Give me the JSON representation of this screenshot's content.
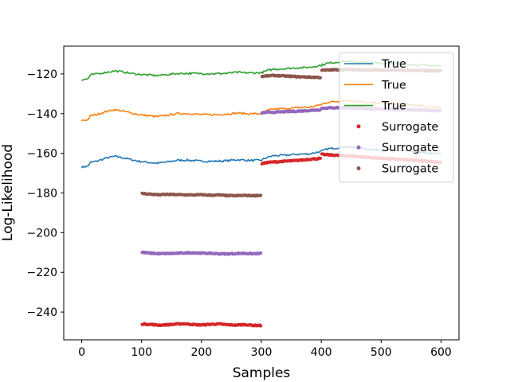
{
  "chart_data": {
    "type": "line",
    "xlabel": "Samples",
    "ylabel": "Log-Likelihood",
    "xlim": [
      -30,
      630
    ],
    "ylim": [
      -254,
      -106
    ],
    "xticks": [
      0,
      100,
      200,
      300,
      400,
      500,
      600
    ],
    "yticks": [
      -240,
      -220,
      -200,
      -180,
      -160,
      -140,
      -120
    ],
    "xtick_labels": [
      "0",
      "100",
      "200",
      "300",
      "400",
      "500",
      "600"
    ],
    "ytick_labels": [
      "−240",
      "−220",
      "−200",
      "−180",
      "−160",
      "−140",
      "−120"
    ],
    "legend_position": "top-right",
    "series": [
      {
        "name": "True",
        "kind": "line",
        "color": "#1f77b4",
        "x": [
          0,
          10,
          15,
          25,
          40,
          55,
          65,
          80,
          95,
          110,
          125,
          140,
          160,
          180,
          200,
          220,
          240,
          260,
          280,
          300,
          310,
          320,
          340,
          360,
          380,
          400,
          410,
          420,
          440,
          460,
          480,
          500,
          520,
          540,
          560,
          580,
          600
        ],
        "y": [
          -167,
          -166.5,
          -164.5,
          -164,
          -162.5,
          -161.5,
          -162,
          -163,
          -164,
          -164.5,
          -165,
          -164.5,
          -163.5,
          -163.5,
          -164,
          -164,
          -163.8,
          -163.2,
          -163.6,
          -163.5,
          -162,
          -161.2,
          -161,
          -160.5,
          -160.3,
          -159,
          -157.8,
          -157.5,
          -156.8,
          -157.2,
          -158,
          -158.2,
          -158.4,
          -158.7,
          -159.5,
          -160,
          -160.3
        ]
      },
      {
        "name": "True",
        "kind": "line",
        "color": "#ff7f0e",
        "x": [
          0,
          10,
          15,
          25,
          40,
          55,
          65,
          80,
          95,
          110,
          125,
          140,
          160,
          180,
          200,
          220,
          240,
          260,
          280,
          300,
          310,
          320,
          340,
          360,
          380,
          400,
          410,
          420,
          440,
          460,
          480,
          500,
          520,
          540,
          560,
          580,
          600
        ],
        "y": [
          -143.5,
          -143,
          -141,
          -140.5,
          -139,
          -138,
          -138.5,
          -139.5,
          -140.5,
          -141,
          -141.5,
          -141,
          -140,
          -140,
          -140.5,
          -140.5,
          -140.3,
          -139.7,
          -140.1,
          -140,
          -138.5,
          -137.7,
          -137.5,
          -137,
          -136.8,
          -135.5,
          -134.3,
          -134,
          -133.3,
          -133.7,
          -134.5,
          -134.7,
          -134.9,
          -135.2,
          -136,
          -136.5,
          -136.8
        ]
      },
      {
        "name": "True",
        "kind": "line",
        "color": "#2ca02c",
        "x": [
          0,
          10,
          15,
          25,
          40,
          55,
          65,
          80,
          95,
          110,
          125,
          140,
          160,
          180,
          200,
          220,
          240,
          260,
          280,
          300,
          310,
          320,
          340,
          360,
          380,
          400,
          410,
          420,
          440,
          460,
          480,
          500,
          520,
          540,
          560,
          580,
          600
        ],
        "y": [
          -123,
          -122.5,
          -120.5,
          -120,
          -119.2,
          -118.5,
          -118.8,
          -119.6,
          -120.2,
          -120.5,
          -120.8,
          -120.4,
          -119.8,
          -119.7,
          -119.8,
          -119.9,
          -119.7,
          -119.2,
          -119.5,
          -119.4,
          -118.3,
          -117.6,
          -117.3,
          -116.9,
          -116.7,
          -115.6,
          -114.6,
          -114.3,
          -113.6,
          -113.9,
          -114.4,
          -114.6,
          -114.7,
          -114.9,
          -115.5,
          -115.8,
          -116
        ]
      },
      {
        "name": "Surrogate",
        "kind": "scatter",
        "color": "#d62728",
        "segments": [
          {
            "x0": 100,
            "x1": 300,
            "y": [
              -246,
              -246.2,
              -246.6,
              -246.4,
              -246.1,
              -245.9,
              -246.3,
              -246.5,
              -246.2,
              -246.0,
              -246.4,
              -246.6,
              -246.3,
              -246.7,
              -246.8
            ]
          },
          {
            "x0": 300,
            "x1": 400,
            "y": [
              -165.3,
              -164.6,
              -164.4,
              -164.2,
              -164,
              -163.8,
              -163.6,
              -163.3,
              -163,
              -162.8,
              -162.5
            ]
          },
          {
            "x0": 400,
            "x1": 600,
            "y": [
              -160.5,
              -160.8,
              -161,
              -161.3,
              -161.5,
              -161.8,
              -162.1,
              -162.4,
              -162.6,
              -162.9,
              -163.1,
              -163.4,
              -163.6,
              -163.9,
              -164.2,
              -164.5
            ]
          }
        ]
      },
      {
        "name": "Surrogate",
        "kind": "scatter",
        "color": "#9467bd",
        "segments": [
          {
            "x0": 100,
            "x1": 300,
            "y": [
              -209.9,
              -210.3,
              -210.6,
              -210.5,
              -210.4,
              -210.2,
              -210.1,
              -210.3,
              -210.4,
              -210.6,
              -210.7,
              -210.5,
              -210.4,
              -210.6,
              -210.5
            ]
          },
          {
            "x0": 300,
            "x1": 400,
            "y": [
              -139.6,
              -139.4,
              -139.3,
              -139.2,
              -139.0,
              -138.9,
              -138.8,
              -138.6,
              -138.4,
              -138.2,
              -138.0
            ]
          },
          {
            "x0": 400,
            "x1": 600,
            "y": [
              -137.3,
              -137.1,
              -137.0,
              -137.0,
              -137.2,
              -137.3,
              -137.5,
              -137.6,
              -137.8,
              -137.9,
              -138.0,
              -138.1,
              -138.2,
              -138.3,
              -138.4,
              -138.5
            ]
          }
        ]
      },
      {
        "name": "Surrogate",
        "kind": "scatter",
        "color": "#8c564b",
        "segments": [
          {
            "x0": 100,
            "x1": 300,
            "y": [
              -180.2,
              -180.6,
              -180.9,
              -180.7,
              -180.8,
              -180.9,
              -181.0,
              -180.9,
              -181.1,
              -181.0,
              -181.3,
              -181.4,
              -181.2,
              -181.3,
              -181.2
            ]
          },
          {
            "x0": 300,
            "x1": 400,
            "y": [
              -121.3,
              -121.0,
              -120.8,
              -120.9,
              -121.1,
              -121.2,
              -121.4,
              -121.5,
              -121.6,
              -121.7,
              -121.8
            ]
          },
          {
            "x0": 400,
            "x1": 600,
            "y": [
              -118.2,
              -118.0,
              -117.9,
              -117.8,
              -117.8,
              -117.9,
              -118.0,
              -118.0,
              -118.1,
              -118.1,
              -118.2,
              -118.2,
              -118.3,
              -118.3,
              -118.4,
              -118.4
            ]
          }
        ]
      }
    ]
  }
}
